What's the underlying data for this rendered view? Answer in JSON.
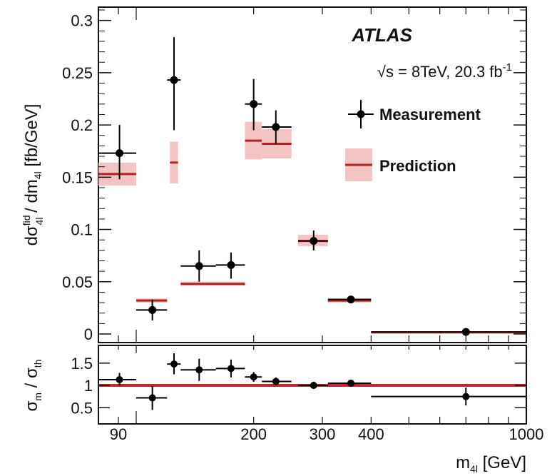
{
  "chart_data": [
    {
      "type": "scatter",
      "panel": "main",
      "experiment_label": "ATLAS",
      "energy_label": {
        "prefix": "√s = 8TeV, 20.3 fb",
        "sup": "-1"
      },
      "ylabel": {
        "parts": [
          "dσ",
          "fid",
          "4l",
          " / dm",
          "4l",
          " [fb/GeV]"
        ]
      },
      "y_ticks": [
        "0",
        "0.05",
        "0.1",
        "0.15",
        "0.2",
        "0.25",
        "0.3"
      ],
      "ylim": [
        0,
        0.31
      ],
      "x_scale": "log",
      "xlim": [
        80,
        1000
      ],
      "series": [
        {
          "name": "Measurement",
          "style": "points-with-errors",
          "color": "#000000",
          "points": [
            {
              "x": 90.6,
              "x_lo": 80,
              "x_hi": 100,
              "y": 0.173,
              "y_lo": 0.148,
              "y_hi": 0.2
            },
            {
              "x": 110.0,
              "x_lo": 100,
              "x_hi": 120,
              "y": 0.023,
              "y_lo": 0.013,
              "y_hi": 0.033
            },
            {
              "x": 125.0,
              "x_lo": 120,
              "x_hi": 130,
              "y": 0.243,
              "y_lo": 0.195,
              "y_hi": 0.284
            },
            {
              "x": 145.0,
              "x_lo": 130,
              "x_hi": 160,
              "y": 0.065,
              "y_lo": 0.05,
              "y_hi": 0.08
            },
            {
              "x": 175.0,
              "x_lo": 160,
              "x_hi": 190,
              "y": 0.066,
              "y_lo": 0.053,
              "y_hi": 0.078
            },
            {
              "x": 200.0,
              "x_lo": 190,
              "x_hi": 210,
              "y": 0.22,
              "y_lo": 0.195,
              "y_hi": 0.244
            },
            {
              "x": 228.0,
              "x_lo": 210,
              "x_hi": 250,
              "y": 0.198,
              "y_lo": 0.182,
              "y_hi": 0.214
            },
            {
              "x": 285.0,
              "x_lo": 260,
              "x_hi": 310,
              "y": 0.089,
              "y_lo": 0.08,
              "y_hi": 0.099
            },
            {
              "x": 355.0,
              "x_lo": 310,
              "x_hi": 400,
              "y": 0.033,
              "y_lo": 0.03,
              "y_hi": 0.036
            },
            {
              "x": 700.0,
              "x_lo": 400,
              "x_hi": 1000,
              "y": 0.002,
              "y_lo": 0.001,
              "y_hi": 0.003
            }
          ]
        },
        {
          "name": "Prediction",
          "style": "bands",
          "color": "#b22222",
          "band_color": "#f2b8b8",
          "bins": [
            {
              "x_lo": 80,
              "x_hi": 100,
              "y": 0.153,
              "y_lo": 0.142,
              "y_hi": 0.164
            },
            {
              "x_lo": 100,
              "x_hi": 120,
              "y": 0.032,
              "y_lo": 0.03,
              "y_hi": 0.034
            },
            {
              "x_lo": 122,
              "x_hi": 128,
              "y": 0.164,
              "y_lo": 0.144,
              "y_hi": 0.184
            },
            {
              "x_lo": 130,
              "x_hi": 190,
              "y": 0.048,
              "y_lo": 0.046,
              "y_hi": 0.05
            },
            {
              "x_lo": 190,
              "x_hi": 210,
              "y": 0.185,
              "y_lo": 0.167,
              "y_hi": 0.203
            },
            {
              "x_lo": 210,
              "x_hi": 250,
              "y": 0.182,
              "y_lo": 0.168,
              "y_hi": 0.196
            },
            {
              "x_lo": 260,
              "x_hi": 310,
              "y": 0.089,
              "y_lo": 0.084,
              "y_hi": 0.095
            },
            {
              "x_lo": 310,
              "x_hi": 400,
              "y": 0.032,
              "y_lo": 0.03,
              "y_hi": 0.034
            },
            {
              "x_lo": 400,
              "x_hi": 1000,
              "y": 0.0015,
              "y_lo": 0.0012,
              "y_hi": 0.0018
            }
          ]
        }
      ]
    },
    {
      "type": "scatter",
      "panel": "ratio",
      "ylabel": {
        "parts": [
          "σ",
          "m",
          " / σ",
          "th"
        ]
      },
      "xlabel": {
        "parts": [
          "m",
          "4l",
          " [GeV]"
        ]
      },
      "x_scale": "log",
      "xlim": [
        80,
        1000
      ],
      "x_ticks": [
        "90",
        "200",
        "300",
        "400",
        "1000"
      ],
      "x_tick_values": [
        90,
        200,
        300,
        400,
        1000
      ],
      "y_ticks": [
        "0.5",
        "1",
        "1.5"
      ],
      "y_tick_values": [
        0.5,
        1,
        1.5
      ],
      "ylim": [
        0.2,
        1.85
      ],
      "reference_line": 1,
      "series": [
        {
          "name": "Measurement",
          "color": "#000000",
          "points": [
            {
              "x": 90.6,
              "x_lo": 80,
              "x_hi": 100,
              "y": 1.13,
              "y_lo": 1.0,
              "y_hi": 1.28
            },
            {
              "x": 110.0,
              "x_lo": 100,
              "x_hi": 120,
              "y": 0.72,
              "y_lo": 0.45,
              "y_hi": 0.98
            },
            {
              "x": 125.0,
              "x_lo": 120,
              "x_hi": 130,
              "y": 1.48,
              "y_lo": 1.25,
              "y_hi": 1.72
            },
            {
              "x": 145.0,
              "x_lo": 130,
              "x_hi": 160,
              "y": 1.35,
              "y_lo": 1.1,
              "y_hi": 1.6
            },
            {
              "x": 175.0,
              "x_lo": 160,
              "x_hi": 190,
              "y": 1.38,
              "y_lo": 1.18,
              "y_hi": 1.58
            },
            {
              "x": 200.0,
              "x_lo": 190,
              "x_hi": 210,
              "y": 1.19,
              "y_lo": 1.08,
              "y_hi": 1.3
            },
            {
              "x": 228.0,
              "x_lo": 210,
              "x_hi": 250,
              "y": 1.09,
              "y_lo": 1.0,
              "y_hi": 1.18
            },
            {
              "x": 285.0,
              "x_lo": 260,
              "x_hi": 310,
              "y": 1.0,
              "y_lo": 0.93,
              "y_hi": 1.08
            },
            {
              "x": 355.0,
              "x_lo": 310,
              "x_hi": 400,
              "y": 1.05,
              "y_lo": 0.98,
              "y_hi": 1.12
            },
            {
              "x": 700.0,
              "x_lo": 400,
              "x_hi": 1000,
              "y": 0.75,
              "y_lo": 0.55,
              "y_hi": 0.95
            }
          ]
        }
      ]
    }
  ]
}
